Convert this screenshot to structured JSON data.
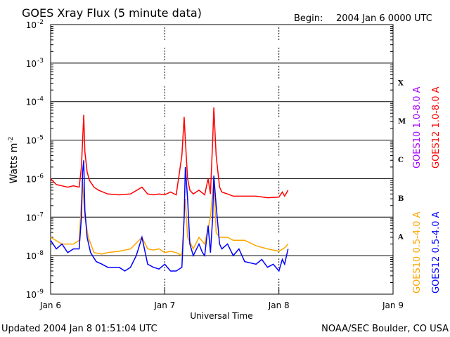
{
  "title": "GOES Xray Flux (5 minute data)",
  "begin_label": "Begin:",
  "begin_value": "2004 Jan 6 0000 UTC",
  "footer_left": "Updated 2004 Jan  8 01:51:04 UTC",
  "footer_right": "NOAA/SEC Boulder, CO USA",
  "colors": {
    "goes12_long": "#ff0000",
    "goes10_long": "#aa00ff",
    "goes12_short": "#0000ff",
    "goes10_short": "#ffa500",
    "background": "#ffffff",
    "grid": "#000000"
  },
  "chart_data": {
    "type": "line",
    "title": "GOES Xray Flux (5 minute data)",
    "xlabel": "Universal Time",
    "ylabel_base": "Watts m",
    "ylabel_exp": "-2",
    "y_scale": "log",
    "ylim": [
      1e-09,
      0.01
    ],
    "y_ticks": [
      {
        "base": "10",
        "exp": "-9",
        "value": 1e-09
      },
      {
        "base": "10",
        "exp": "-8",
        "value": 1e-08
      },
      {
        "base": "10",
        "exp": "-7",
        "value": 1e-07
      },
      {
        "base": "10",
        "exp": "-6",
        "value": 1e-06
      },
      {
        "base": "10",
        "exp": "-5",
        "value": 1e-05
      },
      {
        "base": "10",
        "exp": "-4",
        "value": 0.0001
      },
      {
        "base": "10",
        "exp": "-3",
        "value": 0.001
      },
      {
        "base": "10",
        "exp": "-2",
        "value": 0.01
      }
    ],
    "xlim": [
      "2004-01-06",
      "2004-01-09"
    ],
    "x_ticks": [
      "Jan 6",
      "Jan 7",
      "Jan 8",
      "Jan 9"
    ],
    "grid": "horizontal lines at each decade; dashed vertical marks at day boundaries",
    "flare_classes": [
      {
        "label": "A",
        "value": 1e-08
      },
      {
        "label": "B",
        "value": 1e-07
      },
      {
        "label": "C",
        "value": 1e-06
      },
      {
        "label": "M",
        "value": 1e-05
      },
      {
        "label": "X",
        "value": 0.0001
      }
    ],
    "legend_placement": "right",
    "series": [
      {
        "name": "GOES10 1.0-8.0 A",
        "color": "#aa00ff",
        "x": [],
        "y": []
      },
      {
        "name": "GOES12 1.0-8.0 A",
        "color": "#ff0000",
        "x": [
          0.0,
          0.05,
          0.1,
          0.15,
          0.2,
          0.25,
          0.27,
          0.29,
          0.3,
          0.32,
          0.34,
          0.38,
          0.42,
          0.5,
          0.6,
          0.7,
          0.8,
          0.85,
          0.9,
          0.95,
          1.0,
          1.05,
          1.1,
          1.15,
          1.17,
          1.18,
          1.2,
          1.22,
          1.25,
          1.3,
          1.35,
          1.38,
          1.4,
          1.42,
          1.43,
          1.45,
          1.48,
          1.5,
          1.55,
          1.6,
          1.7,
          1.8,
          1.9,
          2.0,
          2.03,
          2.05,
          2.08
        ],
        "y": [
          1e-06,
          7e-07,
          6.5e-07,
          6e-07,
          6.5e-07,
          6e-07,
          2e-06,
          4.5e-05,
          5e-06,
          1.5e-06,
          9e-07,
          6e-07,
          5e-07,
          4e-07,
          3.8e-07,
          4e-07,
          6e-07,
          4e-07,
          3.8e-07,
          4e-07,
          3.8e-07,
          4.5e-07,
          3.8e-07,
          4e-06,
          4e-05,
          1e-05,
          1e-06,
          5e-07,
          4e-07,
          5e-07,
          3.8e-07,
          1e-06,
          4e-07,
          1e-05,
          7e-05,
          4e-06,
          6e-07,
          4.5e-07,
          4e-07,
          3.5e-07,
          3.5e-07,
          3.5e-07,
          3.2e-07,
          3.3e-07,
          4.5e-07,
          3.5e-07,
          5e-07
        ]
      },
      {
        "name": "GOES10 0.5-4.0 A",
        "color": "#ffa500",
        "x": [
          0.0,
          0.1,
          0.2,
          0.25,
          0.28,
          0.3,
          0.33,
          0.38,
          0.45,
          0.5,
          0.6,
          0.7,
          0.8,
          0.85,
          0.9,
          0.95,
          1.0,
          1.05,
          1.1,
          1.15,
          1.18,
          1.2,
          1.25,
          1.3,
          1.35,
          1.4,
          1.43,
          1.45,
          1.48,
          1.55,
          1.6,
          1.7,
          1.8,
          1.9,
          2.0,
          2.05,
          2.08
        ],
        "y": [
          3e-08,
          2e-08,
          2e-08,
          2.5e-08,
          8e-07,
          1e-07,
          3e-08,
          1.2e-08,
          1.1e-08,
          1.2e-08,
          1.3e-08,
          1.5e-08,
          3e-08,
          1.5e-08,
          1.4e-08,
          1.5e-08,
          1.2e-08,
          1.3e-08,
          1.2e-08,
          1e-08,
          3e-07,
          3e-08,
          1.5e-08,
          3e-08,
          2e-08,
          1e-07,
          1e-06,
          4e-08,
          3e-08,
          3e-08,
          2.5e-08,
          2.5e-08,
          1.8e-08,
          1.5e-08,
          1.3e-08,
          1.6e-08,
          2e-08
        ]
      },
      {
        "name": "GOES12 0.5-4.0 A",
        "color": "#0000ff",
        "x": [
          0.0,
          0.05,
          0.1,
          0.15,
          0.2,
          0.25,
          0.27,
          0.28,
          0.29,
          0.3,
          0.32,
          0.35,
          0.4,
          0.45,
          0.5,
          0.6,
          0.65,
          0.7,
          0.75,
          0.8,
          0.85,
          0.9,
          0.95,
          1.0,
          1.05,
          1.1,
          1.15,
          1.17,
          1.18,
          1.2,
          1.22,
          1.25,
          1.3,
          1.33,
          1.35,
          1.38,
          1.4,
          1.42,
          1.43,
          1.45,
          1.48,
          1.5,
          1.55,
          1.6,
          1.65,
          1.7,
          1.8,
          1.85,
          1.9,
          1.95,
          2.0,
          2.03,
          2.05,
          2.08
        ],
        "y": [
          2.5e-08,
          1.5e-08,
          2e-08,
          1.2e-08,
          1.5e-08,
          1.5e-08,
          1e-07,
          1.5e-06,
          3e-06,
          1.5e-07,
          3e-08,
          1.2e-08,
          7e-09,
          6e-09,
          5e-09,
          5e-09,
          4e-09,
          5e-09,
          1e-08,
          3e-08,
          6e-09,
          5e-09,
          4.5e-09,
          6e-09,
          4e-09,
          4e-09,
          5e-09,
          1e-07,
          2e-06,
          3e-07,
          2e-08,
          1e-08,
          2e-08,
          1.2e-08,
          1e-08,
          6e-08,
          1.2e-08,
          1e-07,
          1.2e-06,
          2e-07,
          2e-08,
          1.5e-08,
          2e-08,
          1e-08,
          1.5e-08,
          7e-09,
          6e-09,
          8e-09,
          5e-09,
          6e-09,
          4e-09,
          8e-09,
          6e-09,
          1.5e-08
        ]
      }
    ]
  }
}
